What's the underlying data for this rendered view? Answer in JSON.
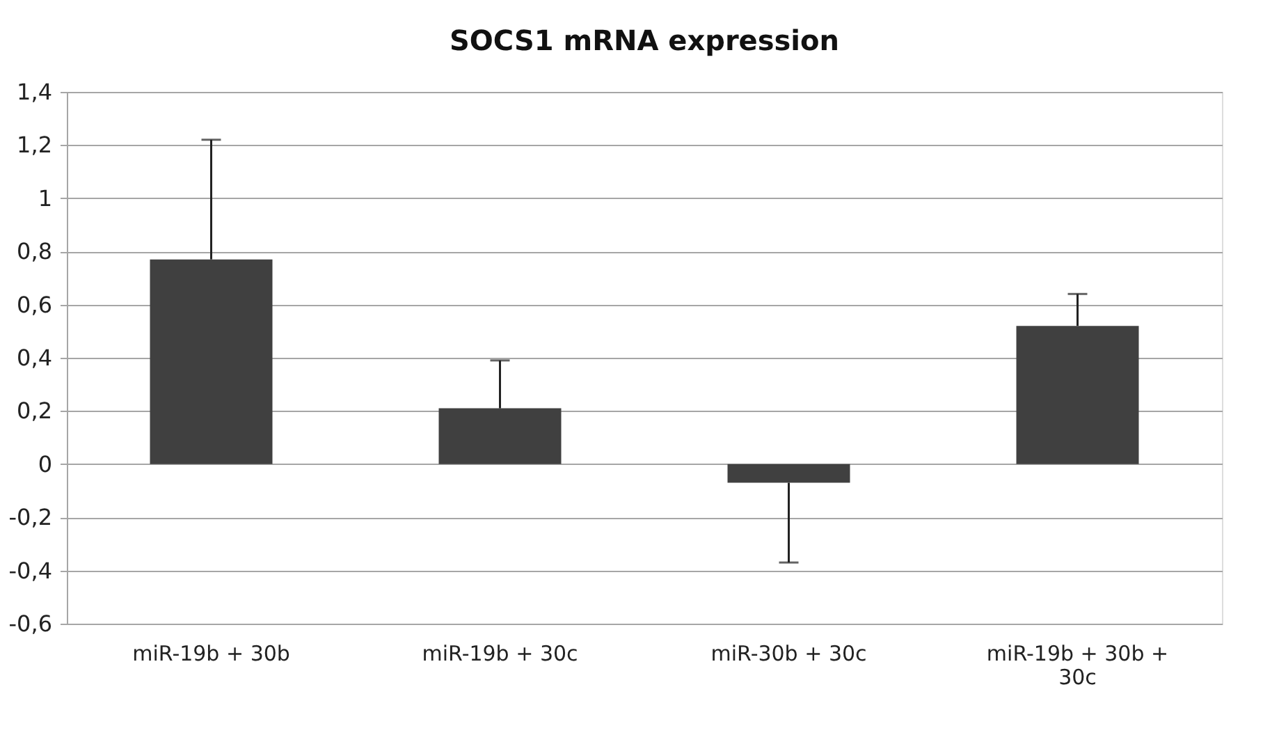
{
  "chart_data": {
    "type": "bar",
    "title": "SOCS1 mRNA expression",
    "categories": [
      "miR-19b + 30b",
      "miR-19b + 30c",
      "miR-30b + 30c",
      "miR-19b + 30b + 30c"
    ],
    "values": [
      0.77,
      0.21,
      -0.07,
      0.52
    ],
    "errors": [
      [
        0.77,
        1.22
      ],
      [
        0.21,
        0.39
      ],
      [
        -0.37,
        -0.07
      ],
      [
        0.52,
        0.64
      ]
    ],
    "color": "#404040",
    "ylim": [
      -0.6,
      1.4
    ],
    "yticks": [
      {
        "value": -0.6,
        "label": "-0,6"
      },
      {
        "value": -0.4,
        "label": "-0,4"
      },
      {
        "value": -0.2,
        "label": "-0,2"
      },
      0,
      {
        "value": 0.2,
        "label": "0,2"
      },
      {
        "value": 0.4,
        "label": "0,4"
      },
      {
        "value": 0.6,
        "label": "0,6"
      },
      {
        "value": 0.8,
        "label": "0,8"
      },
      1,
      {
        "value": 1.2,
        "label": "1,2"
      },
      {
        "value": 1.4,
        "label": "1,4"
      }
    ],
    "grid": "y",
    "legend": false
  }
}
